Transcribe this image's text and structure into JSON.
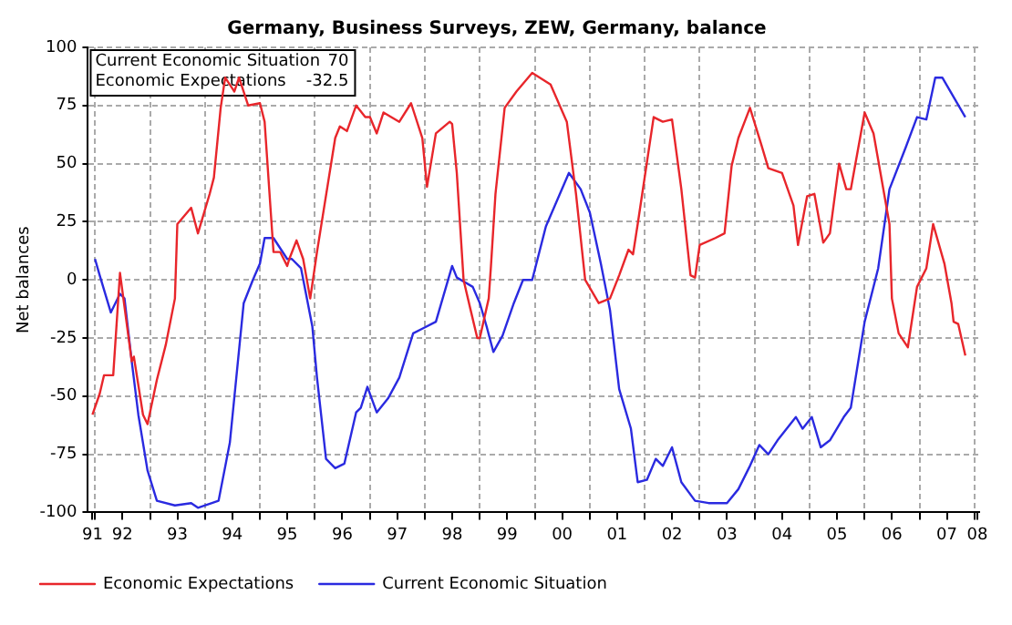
{
  "chart_data": {
    "type": "line",
    "title": "Germany, Business Surveys, ZEW, Germany, balance",
    "ylabel": "Net balances",
    "xlim": [
      "1991-11-15",
      "2008-02-01"
    ],
    "ylim": [
      -100,
      100
    ],
    "yticks": [
      -100,
      -75,
      -50,
      -25,
      0,
      25,
      50,
      75,
      100
    ],
    "xticks": [
      {
        "value": "1991-12-15",
        "label": "91"
      },
      {
        "value": "1992-01-01",
        "label": null
      },
      {
        "value": "1992-07-01",
        "label": "92"
      },
      {
        "value": "1993-01-01",
        "label": null
      },
      {
        "value": "1993-07-01",
        "label": "93"
      },
      {
        "value": "1994-01-01",
        "label": null
      },
      {
        "value": "1994-07-01",
        "label": "94"
      },
      {
        "value": "1995-01-01",
        "label": null
      },
      {
        "value": "1995-07-01",
        "label": "95"
      },
      {
        "value": "1996-01-01",
        "label": null
      },
      {
        "value": "1996-07-01",
        "label": "96"
      },
      {
        "value": "1997-01-01",
        "label": null
      },
      {
        "value": "1997-07-01",
        "label": "97"
      },
      {
        "value": "1998-01-01",
        "label": null
      },
      {
        "value": "1998-07-01",
        "label": "98"
      },
      {
        "value": "1999-01-01",
        "label": null
      },
      {
        "value": "1999-07-01",
        "label": "99"
      },
      {
        "value": "2000-01-01",
        "label": null
      },
      {
        "value": "2000-07-01",
        "label": "00"
      },
      {
        "value": "2001-01-01",
        "label": null
      },
      {
        "value": "2001-07-01",
        "label": "01"
      },
      {
        "value": "2002-01-01",
        "label": null
      },
      {
        "value": "2002-07-01",
        "label": "02"
      },
      {
        "value": "2003-01-01",
        "label": null
      },
      {
        "value": "2003-07-01",
        "label": "03"
      },
      {
        "value": "2004-01-01",
        "label": null
      },
      {
        "value": "2004-07-01",
        "label": "04"
      },
      {
        "value": "2005-01-01",
        "label": null
      },
      {
        "value": "2005-07-01",
        "label": "05"
      },
      {
        "value": "2006-01-01",
        "label": null
      },
      {
        "value": "2006-07-01",
        "label": "06"
      },
      {
        "value": "2007-01-01",
        "label": null
      },
      {
        "value": "2007-07-01",
        "label": "07"
      },
      {
        "value": "2008-01-01",
        "label": null
      },
      {
        "value": "2008-01-20",
        "label": "08"
      }
    ],
    "grid": true,
    "legend": "bottom left",
    "marker": "none",
    "line_style": "solid",
    "annotations": [
      "Current Economic Situation",
      "70",
      "Economic Expectations",
      "-32.5"
    ],
    "series": [
      {
        "name": "Economic Expectations",
        "color": "#e8262b",
        "x": [
          "1991-12-15",
          "1992-02-01",
          "1992-03-01",
          "1992-05-01",
          "1992-06-15",
          "1992-09-01",
          "1992-09-15",
          "1992-11-15",
          "1992-12-15",
          "1993-02-15",
          "1993-04-15",
          "1993-06-15",
          "1993-07-01",
          "1993-10-01",
          "1993-11-15",
          "1994-02-01",
          "1994-03-01",
          "1994-04-15",
          "1994-05-15",
          "1994-07-15",
          "1994-08-15",
          "1994-10-15",
          "1995-01-01",
          "1995-02-01",
          "1995-04-01",
          "1995-05-15",
          "1995-07-01",
          "1995-07-15",
          "1995-09-01",
          "1995-10-15",
          "1995-12-01",
          "1996-01-15",
          "1996-05-15",
          "1996-06-15",
          "1996-08-01",
          "1996-10-01",
          "1996-12-01",
          "1997-01-01",
          "1997-02-15",
          "1997-04-01",
          "1997-07-15",
          "1997-10-01",
          "1997-12-15",
          "1998-01-15",
          "1998-03-15",
          "1998-06-15",
          "1998-07-01",
          "1998-08-01",
          "1998-09-15",
          "1998-11-01",
          "1998-12-15",
          "1999-01-01",
          "1999-03-01",
          "1999-03-15",
          "1999-04-15",
          "1999-06-15",
          "1999-09-01",
          "1999-12-15",
          "2000-04-15",
          "2000-08-01",
          "2000-10-01",
          "2000-12-01",
          "2001-03-01",
          "2001-05-15",
          "2001-07-15",
          "2001-09-15",
          "2001-10-15",
          "2001-11-15",
          "2002-03-01",
          "2002-05-01",
          "2002-07-01",
          "2002-09-01",
          "2002-11-01",
          "2002-12-01",
          "2003-01-01",
          "2003-04-15",
          "2003-06-15",
          "2003-08-01",
          "2003-09-15",
          "2003-12-01",
          "2004-02-15",
          "2004-04-01",
          "2004-07-01",
          "2004-09-15",
          "2004-10-15",
          "2004-12-15",
          "2005-02-01",
          "2005-04-01",
          "2005-05-15",
          "2005-07-15",
          "2005-09-01",
          "2005-10-01",
          "2006-01-01",
          "2006-03-01",
          "2006-06-15",
          "2006-07-01",
          "2006-08-15",
          "2006-10-15",
          "2006-12-15",
          "2007-02-15",
          "2007-04-01",
          "2007-06-15",
          "2007-08-01",
          "2007-08-15",
          "2007-09-15",
          "2007-11-01"
        ],
        "values": [
          -58,
          -49,
          -41,
          -41,
          3,
          -35,
          -33,
          -58,
          -62,
          -43,
          -28,
          -8,
          24,
          31,
          20,
          37,
          44,
          74,
          87,
          81,
          87,
          75,
          76,
          68,
          12,
          12,
          6,
          9,
          17,
          9,
          -8,
          12,
          61,
          66,
          64,
          75,
          70,
          70,
          63,
          72,
          68,
          76,
          61,
          40,
          63,
          68,
          67,
          46,
          0,
          -13,
          -25,
          -25,
          -8,
          5,
          37,
          74,
          81,
          89,
          84,
          68,
          37,
          0,
          -10,
          -8,
          2,
          13,
          11,
          24,
          70,
          68,
          69,
          39,
          2,
          1,
          15,
          18,
          20,
          49,
          61,
          74,
          58,
          48,
          46,
          32,
          15,
          36,
          37,
          16,
          20,
          50,
          39,
          39,
          72,
          63,
          24,
          -8,
          -23,
          -29,
          -3,
          5,
          24,
          7,
          -10,
          -18,
          -19,
          -32.5
        ]
      },
      {
        "name": "Current Economic Situation",
        "color": "#2a2ae0",
        "x": [
          "1992-01-01",
          "1992-02-01",
          "1992-04-15",
          "1992-06-15",
          "1992-07-15",
          "1992-09-01",
          "1992-10-15",
          "1992-12-15",
          "1993-02-15",
          "1993-06-15",
          "1993-10-01",
          "1993-11-15",
          "1994-04-01",
          "1994-06-15",
          "1994-09-15",
          "1994-11-15",
          "1995-01-01",
          "1995-02-01",
          "1995-04-01",
          "1995-07-01",
          "1995-08-01",
          "1995-10-01",
          "1995-12-15",
          "1996-01-15",
          "1996-03-15",
          "1996-05-15",
          "1996-07-15",
          "1996-10-01",
          "1996-11-01",
          "1996-12-15",
          "1997-02-15",
          "1997-05-01",
          "1997-07-15",
          "1997-10-15",
          "1997-12-15",
          "1998-03-15",
          "1998-07-01",
          "1998-08-01",
          "1998-11-15",
          "1999-01-01",
          "1999-02-15",
          "1999-04-01",
          "1999-06-01",
          "1999-08-15",
          "1999-10-15",
          "1999-12-15",
          "2000-03-15",
          "2000-08-15",
          "2000-11-01",
          "2001-01-01",
          "2001-03-15",
          "2001-05-15",
          "2001-07-15",
          "2001-10-01",
          "2001-11-15",
          "2002-01-15",
          "2002-03-15",
          "2002-05-01",
          "2002-07-01",
          "2002-09-01",
          "2002-12-01",
          "2003-03-01",
          "2003-07-01",
          "2003-09-15",
          "2003-12-01",
          "2004-02-01",
          "2004-04-01",
          "2004-06-01",
          "2004-10-01",
          "2004-11-15",
          "2005-01-15",
          "2005-03-15",
          "2005-05-15",
          "2005-08-15",
          "2005-10-01",
          "2006-01-01",
          "2006-04-01",
          "2006-06-15",
          "2006-10-01",
          "2006-12-15",
          "2007-02-15",
          "2007-04-15",
          "2007-06-01",
          "2007-11-01"
        ],
        "values": [
          9,
          2,
          -14,
          -6,
          -8,
          -35,
          -58,
          -82,
          -95,
          -97,
          -96,
          -98,
          -95,
          -70,
          -10,
          0,
          7,
          18,
          18,
          9,
          9,
          5,
          -20,
          -42,
          -77,
          -81,
          -79,
          -57,
          -55,
          -46,
          -57,
          -51,
          -42,
          -23,
          -21,
          -18,
          6,
          1,
          -3,
          -10,
          -20,
          -31,
          -24,
          -10,
          0,
          0,
          23,
          46,
          39,
          29,
          7,
          -13,
          -47,
          -64,
          -87,
          -86,
          -77,
          -80,
          -72,
          -87,
          -95,
          -96,
          -96,
          -90,
          -80,
          -71,
          -75,
          -69,
          -59,
          -64,
          -59,
          -72,
          -69,
          -59,
          -55,
          -18,
          5,
          39,
          57,
          70,
          69,
          87,
          87,
          70
        ]
      }
    ]
  }
}
